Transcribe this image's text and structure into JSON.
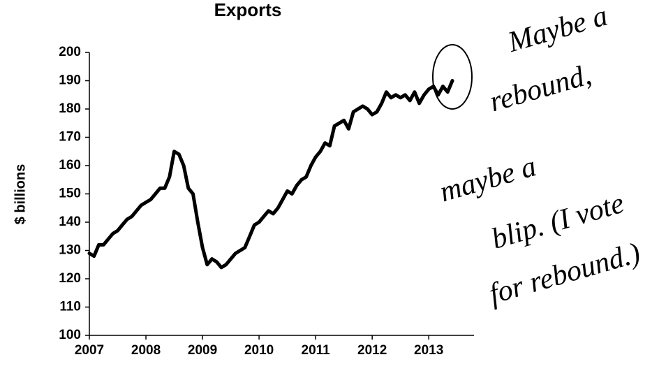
{
  "chart_data": {
    "type": "line",
    "title": "Exports",
    "y_label": "$ billions",
    "x": [
      2007,
      2007.083,
      2007.167,
      2007.25,
      2007.333,
      2007.417,
      2007.5,
      2007.583,
      2007.667,
      2007.75,
      2007.833,
      2007.917,
      2008,
      2008.083,
      2008.167,
      2008.25,
      2008.333,
      2008.417,
      2008.5,
      2008.583,
      2008.667,
      2008.75,
      2008.833,
      2008.917,
      2009,
      2009.083,
      2009.167,
      2009.25,
      2009.333,
      2009.417,
      2009.5,
      2009.583,
      2009.667,
      2009.75,
      2009.833,
      2009.917,
      2010,
      2010.083,
      2010.167,
      2010.25,
      2010.333,
      2010.417,
      2010.5,
      2010.583,
      2010.667,
      2010.75,
      2010.833,
      2010.917,
      2011,
      2011.083,
      2011.167,
      2011.25,
      2011.333,
      2011.417,
      2011.5,
      2011.583,
      2011.667,
      2011.75,
      2011.833,
      2011.917,
      2012,
      2012.083,
      2012.167,
      2012.25,
      2012.333,
      2012.417,
      2012.5,
      2012.583,
      2012.667,
      2012.75,
      2012.833,
      2012.917,
      2013,
      2013.083,
      2013.167,
      2013.25,
      2013.333,
      2013.417
    ],
    "series": [
      {
        "name": "Exports",
        "color": "#000000",
        "values": [
          129,
          128,
          132,
          132,
          134,
          136,
          137,
          139,
          141,
          142,
          144,
          146,
          147,
          148,
          150,
          152,
          152,
          156,
          165,
          164,
          160,
          152,
          150,
          140,
          131,
          125,
          127,
          126,
          124,
          125,
          127,
          129,
          130,
          131,
          135,
          139,
          140,
          142,
          144,
          143,
          145,
          148,
          151,
          150,
          153,
          155,
          156,
          160,
          163,
          165,
          168,
          167,
          174,
          175,
          176,
          173,
          179,
          180,
          181,
          180,
          178,
          179,
          182,
          186,
          184,
          185,
          184,
          185,
          183,
          186,
          182,
          185,
          187,
          188,
          185,
          188,
          186,
          190
        ]
      }
    ],
    "xlim": [
      2007,
      2013.8
    ],
    "xticks": [
      2007,
      2008,
      2009,
      2010,
      2011,
      2012,
      2013
    ],
    "ylim": [
      100,
      200
    ],
    "yticks": [
      100,
      110,
      120,
      130,
      140,
      150,
      160,
      170,
      180,
      190,
      200
    ],
    "grid": false,
    "annotation": [
      "Maybe a",
      "rebound,",
      "maybe a",
      "blip. (I vote",
      "for rebound.)"
    ]
  }
}
